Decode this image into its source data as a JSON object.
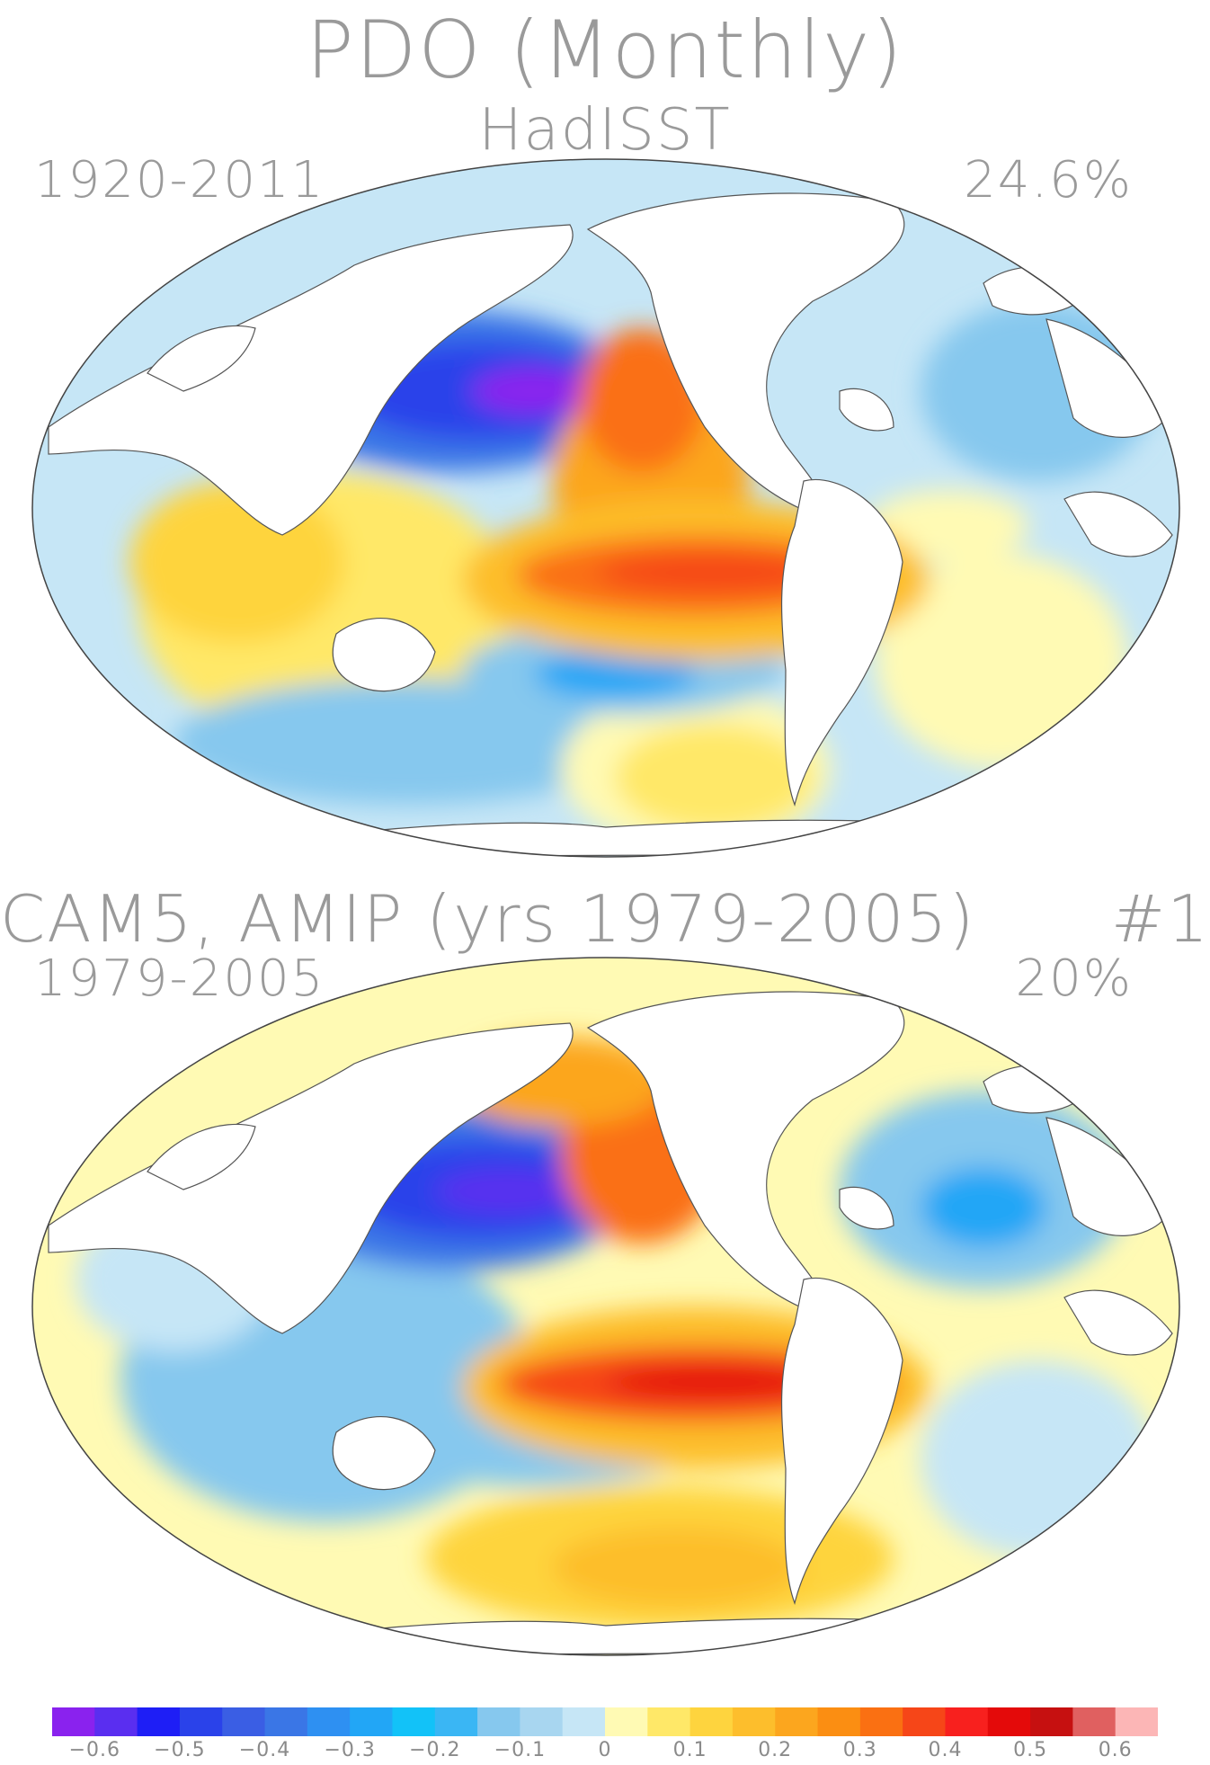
{
  "title": "PDO (Monthly)",
  "panels": [
    {
      "dataset": "HadISST",
      "period": "1920-2011",
      "percent": "24.6%"
    },
    {
      "dataset": "CAM5, AMIP (yrs 1979-2005)",
      "index": "#1",
      "period": "1979-2005",
      "percent": "20%"
    }
  ],
  "colorbar": {
    "colors": [
      "#8a22ee",
      "#5a2ef0",
      "#1e1ef6",
      "#2a42ea",
      "#3a5ee4",
      "#3a76e6",
      "#2e90f2",
      "#22a6f6",
      "#12c2f8",
      "#3ab6f4",
      "#86c8ee",
      "#a8d6f0",
      "#c6e6f6",
      "#fffab4",
      "#ffe868",
      "#fed43e",
      "#fdbe2c",
      "#fca61e",
      "#fb8e12",
      "#fa7012",
      "#f64618",
      "#f8201e",
      "#e40a0a",
      "#c61010",
      "#e06060",
      "#fcb6b6"
    ],
    "tick_labels": [
      "-0.6",
      "-0.5",
      "-0.4",
      "-0.3",
      "-0.2",
      "-0.1",
      "0",
      "0.1",
      "0.2",
      "0.3",
      "0.4",
      "0.5",
      "0.6"
    ]
  }
}
